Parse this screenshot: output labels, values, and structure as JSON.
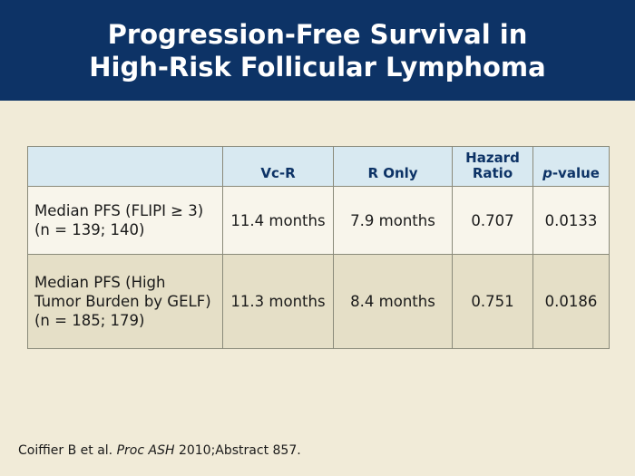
{
  "title": {
    "line1": "Progression-Free Survival in",
    "line2": "High-Risk Follicular Lymphoma"
  },
  "table": {
    "headers": {
      "label": "",
      "vcr": "Vc-R",
      "r_only": "R Only",
      "hazard_line1": "Hazard",
      "hazard_line2": "Ratio",
      "p_italic": "p",
      "p_rest": "-value"
    },
    "rows": [
      {
        "label_lines": [
          "Median PFS (FLIPI ≥ 3)",
          "(n = 139; 140)"
        ],
        "vcr": "11.4 months",
        "r_only": "7.9 months",
        "hazard": "0.707",
        "p_value": "0.0133"
      },
      {
        "label_lines": [
          "Median PFS (High",
          "Tumor Burden by GELF)",
          "(n = 185; 179)"
        ],
        "vcr": "11.3 months",
        "r_only": "8.4 months",
        "hazard": "0.751",
        "p_value": "0.0186"
      }
    ]
  },
  "citation": {
    "authors": "Coiffier B et al.",
    "journal": "Proc ASH",
    "rest": "2010;Abstract 857."
  },
  "colors": {
    "title_bar": "#0d3366",
    "background": "#f1ebd8",
    "header_fill": "#d8e9f1",
    "row_light": "#f8f5eb",
    "row_dark": "#e5dfc7"
  }
}
